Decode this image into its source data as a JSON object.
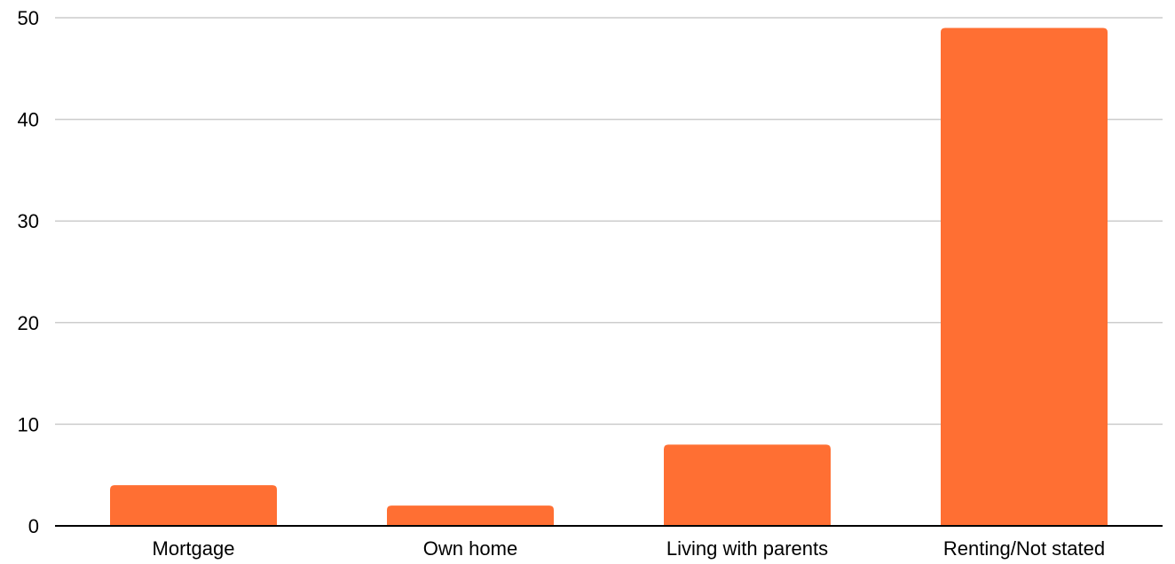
{
  "chart_data": {
    "type": "bar",
    "title": "",
    "xlabel": "",
    "ylabel": "",
    "categories": [
      "Mortgage",
      "Own home",
      "Living with parents",
      "Renting/Not stated"
    ],
    "values": [
      4,
      2,
      8,
      49
    ],
    "ylim": [
      0,
      50
    ],
    "yticks": [
      0,
      10,
      20,
      30,
      40,
      50
    ],
    "grid": true,
    "legend": "none",
    "colors": {
      "bar": "#ff6f33",
      "grid": "#cccccc",
      "axis": "#000000"
    }
  }
}
